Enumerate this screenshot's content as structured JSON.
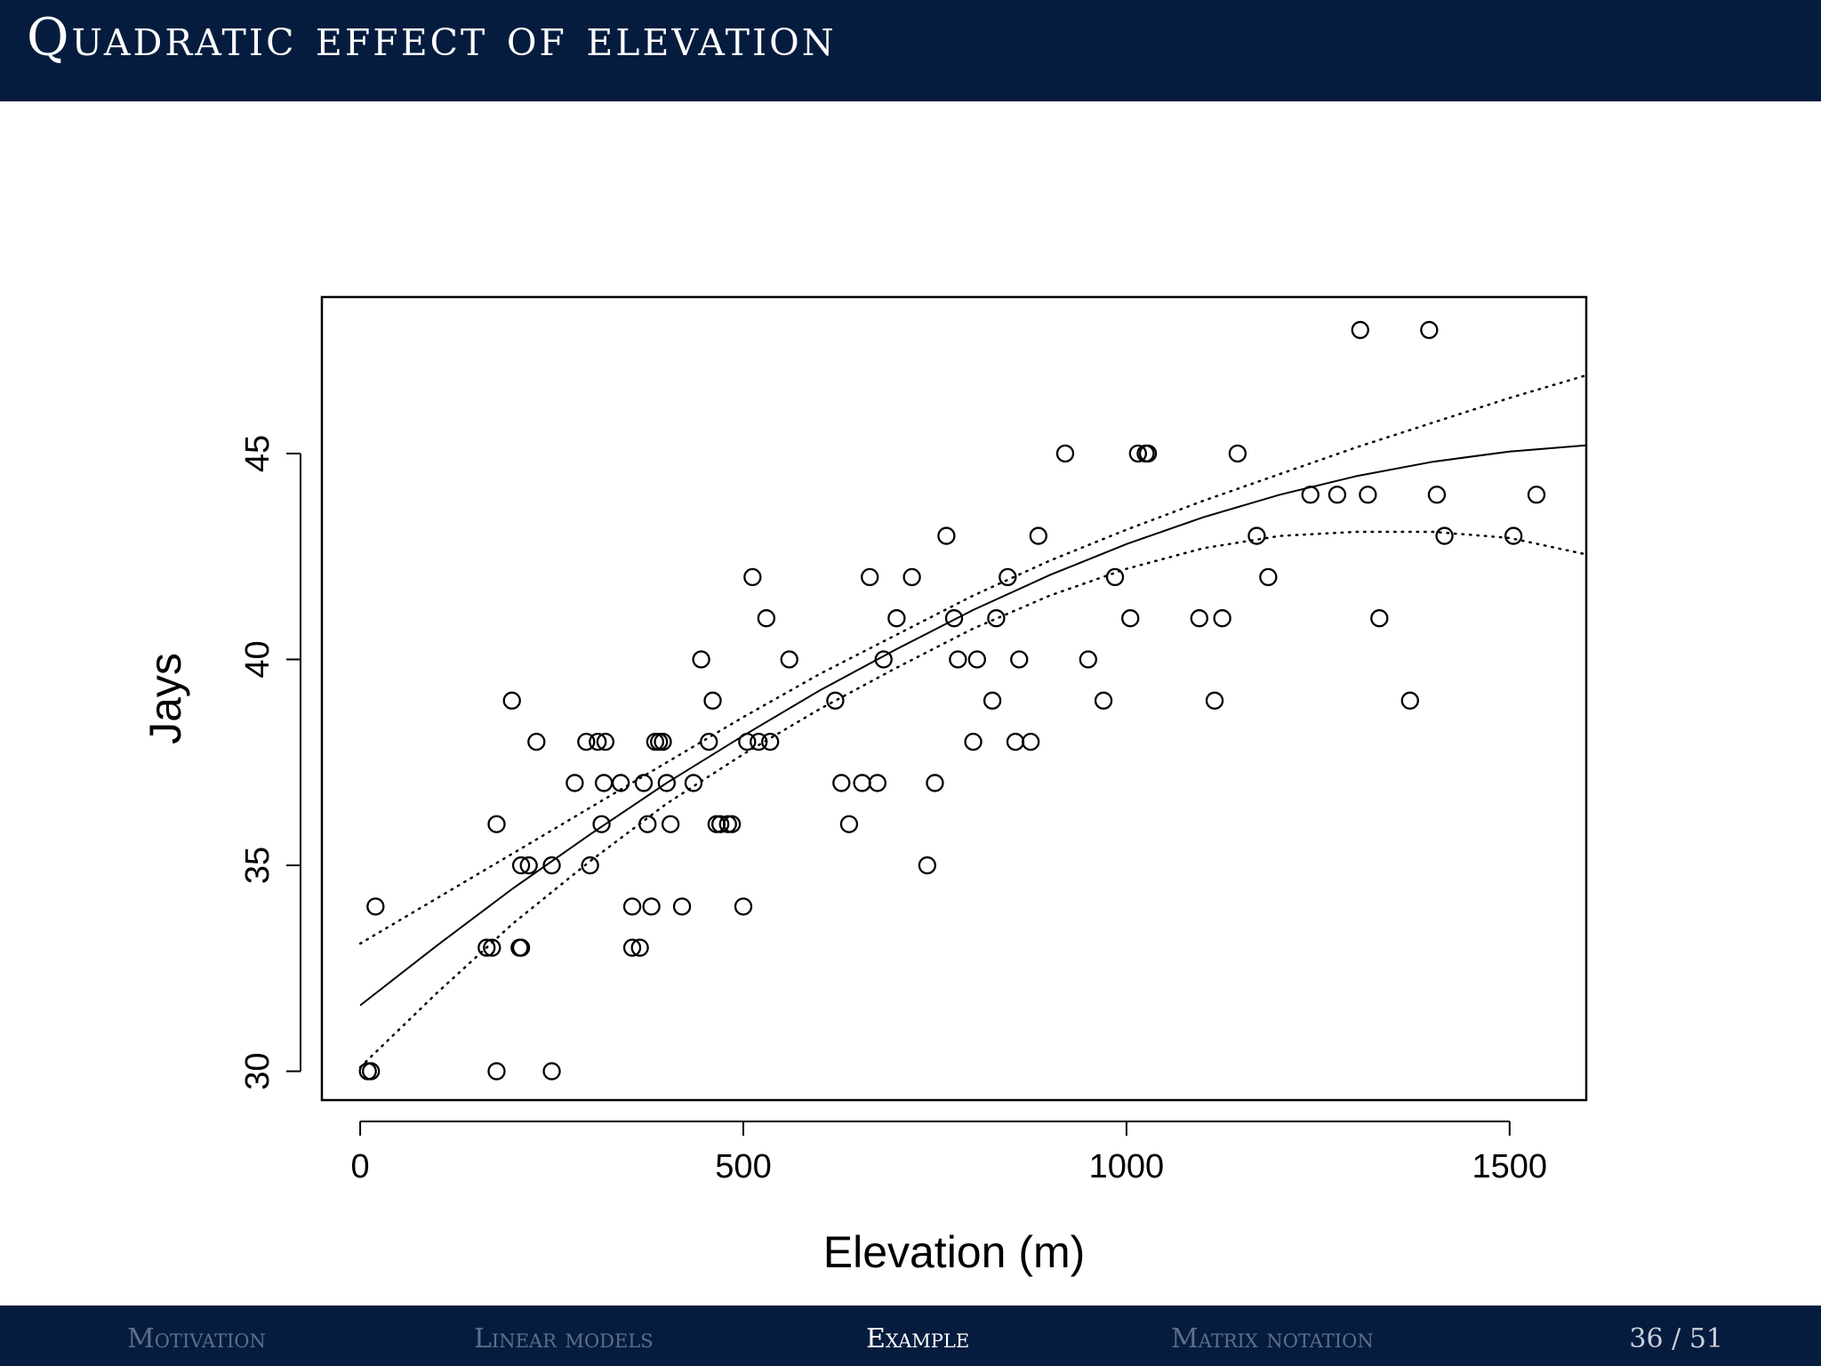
{
  "slide": {
    "title": "Quadratic effect of elevation",
    "page_current": "36",
    "page_sep": "/",
    "page_total": "51"
  },
  "nav": [
    {
      "label": "Motivation",
      "active": false
    },
    {
      "label": "Linear models",
      "active": false
    },
    {
      "label": "Example",
      "active": true
    },
    {
      "label": "Matrix notation",
      "active": false
    }
  ],
  "chart_data": {
    "type": "scatter",
    "title": "",
    "xlabel": "Elevation (m)",
    "ylabel": "Jays",
    "xlim": [
      -50,
      1600
    ],
    "ylim": [
      29.3,
      48.8
    ],
    "xticks": [
      0,
      500,
      1000,
      1500
    ],
    "yticks": [
      30,
      35,
      40,
      45
    ],
    "grid": false,
    "points": [
      [
        10,
        30
      ],
      [
        14,
        30
      ],
      [
        20,
        34
      ],
      [
        165,
        33
      ],
      [
        172,
        33
      ],
      [
        178,
        36
      ],
      [
        178,
        30
      ],
      [
        198,
        39
      ],
      [
        208,
        33
      ],
      [
        210,
        33
      ],
      [
        210,
        35
      ],
      [
        220,
        35
      ],
      [
        230,
        38
      ],
      [
        250,
        35
      ],
      [
        250,
        30
      ],
      [
        280,
        37
      ],
      [
        295,
        38
      ],
      [
        300,
        35
      ],
      [
        310,
        38
      ],
      [
        315,
        36
      ],
      [
        318,
        37
      ],
      [
        320,
        38
      ],
      [
        340,
        37
      ],
      [
        355,
        33
      ],
      [
        355,
        34
      ],
      [
        365,
        33
      ],
      [
        370,
        37
      ],
      [
        375,
        36
      ],
      [
        380,
        34
      ],
      [
        385,
        38
      ],
      [
        390,
        38
      ],
      [
        395,
        38
      ],
      [
        400,
        37
      ],
      [
        405,
        36
      ],
      [
        420,
        34
      ],
      [
        435,
        37
      ],
      [
        445,
        40
      ],
      [
        455,
        38
      ],
      [
        460,
        39
      ],
      [
        465,
        36
      ],
      [
        470,
        36
      ],
      [
        480,
        36
      ],
      [
        485,
        36
      ],
      [
        500,
        34
      ],
      [
        505,
        38
      ],
      [
        512,
        42
      ],
      [
        520,
        38
      ],
      [
        530,
        41
      ],
      [
        535,
        38
      ],
      [
        560,
        40
      ],
      [
        620,
        39
      ],
      [
        628,
        37
      ],
      [
        638,
        36
      ],
      [
        655,
        37
      ],
      [
        665,
        42
      ],
      [
        675,
        37
      ],
      [
        683,
        40
      ],
      [
        700,
        41
      ],
      [
        720,
        42
      ],
      [
        740,
        35
      ],
      [
        750,
        37
      ],
      [
        765,
        43
      ],
      [
        775,
        41
      ],
      [
        780,
        40
      ],
      [
        800,
        38
      ],
      [
        805,
        40
      ],
      [
        825,
        39
      ],
      [
        830,
        41
      ],
      [
        845,
        42
      ],
      [
        855,
        38
      ],
      [
        860,
        40
      ],
      [
        875,
        38
      ],
      [
        885,
        43
      ],
      [
        920,
        45
      ],
      [
        950,
        40
      ],
      [
        970,
        39
      ],
      [
        985,
        42
      ],
      [
        1005,
        41
      ],
      [
        1015,
        45
      ],
      [
        1025,
        45
      ],
      [
        1028,
        45
      ],
      [
        1095,
        41
      ],
      [
        1115,
        39
      ],
      [
        1125,
        41
      ],
      [
        1145,
        45
      ],
      [
        1170,
        43
      ],
      [
        1185,
        42
      ],
      [
        1240,
        44
      ],
      [
        1275,
        44
      ],
      [
        1305,
        48
      ],
      [
        1315,
        44
      ],
      [
        1330,
        41
      ],
      [
        1370,
        39
      ],
      [
        1395,
        48
      ],
      [
        1405,
        44
      ],
      [
        1415,
        43
      ],
      [
        1505,
        43
      ],
      [
        1535,
        44
      ]
    ],
    "fit": {
      "x": [
        0,
        100,
        200,
        300,
        400,
        500,
        600,
        700,
        800,
        900,
        1000,
        1100,
        1200,
        1300,
        1400,
        1500,
        1600
      ],
      "y": [
        31.6,
        33.05,
        34.45,
        35.75,
        37.0,
        38.15,
        39.25,
        40.25,
        41.2,
        42.05,
        42.8,
        43.45,
        44.0,
        44.45,
        44.8,
        45.05,
        45.2
      ]
    },
    "upper": {
      "x": [
        0,
        100,
        200,
        300,
        400,
        500,
        600,
        700,
        800,
        900,
        1000,
        1100,
        1200,
        1300,
        1400,
        1500,
        1600
      ],
      "y": [
        33.1,
        34.2,
        35.3,
        36.4,
        37.5,
        38.6,
        39.65,
        40.6,
        41.55,
        42.4,
        43.15,
        43.85,
        44.5,
        45.15,
        45.75,
        46.35,
        46.9
      ]
    },
    "lower": {
      "x": [
        0,
        100,
        200,
        300,
        400,
        500,
        600,
        700,
        800,
        900,
        1000,
        1100,
        1200,
        1300,
        1400,
        1500,
        1600
      ],
      "y": [
        30.1,
        31.9,
        33.6,
        35.1,
        36.5,
        37.7,
        38.8,
        39.8,
        40.75,
        41.55,
        42.2,
        42.7,
        43.0,
        43.1,
        43.1,
        42.95,
        42.55
      ]
    }
  }
}
